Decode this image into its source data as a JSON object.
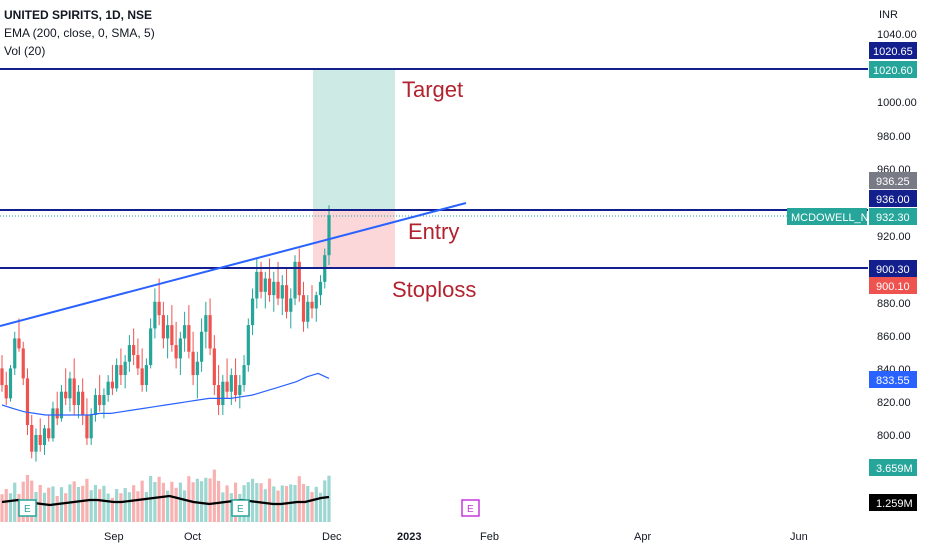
{
  "header": {
    "symbol": "UNITED SPIRITS, 1D, NSE",
    "ema": "EMA (200, close, 0, SMA, 5)",
    "vol": "Vol (20)"
  },
  "currency": "INR",
  "annotations": {
    "target": "Target",
    "entry": "Entry",
    "stoploss": "Stoploss"
  },
  "ticker_tag": "MCDOWELL_N",
  "colors": {
    "up": "#26a69a",
    "down": "#ef5350",
    "hline": "#131f8c",
    "trendline": "#2962ff",
    "ema": "#2962ff",
    "target_zone": "#cdeae4",
    "stop_zone": "#fbd7d9",
    "annotation": "#b2222f"
  },
  "chart_data": {
    "type": "candlestick",
    "price_axis": {
      "ticks": [
        "1040.00",
        "1000.00",
        "980.00",
        "960.00",
        "920.00",
        "880.00",
        "860.00",
        "840.00",
        "820.00",
        "800.00"
      ],
      "range": [
        775,
        1050
      ]
    },
    "time_axis": [
      "Sep",
      "Oct",
      "Dec",
      "2023",
      "Feb",
      "Apr",
      "Jun"
    ],
    "price_labels": [
      {
        "text": "1020.65",
        "value": 1020.65,
        "color": "#131f8c"
      },
      {
        "text": "1020.60",
        "value": 1020.6,
        "color": "#26a69a"
      },
      {
        "text": "936.25",
        "value": 936.25,
        "color": "#787b86"
      },
      {
        "text": "936.00",
        "value": 936.0,
        "color": "#131f8c"
      },
      {
        "text": "932.30",
        "value": 932.3,
        "color": "#26a69a"
      },
      {
        "text": "900.30",
        "value": 900.3,
        "color": "#131f8c"
      },
      {
        "text": "900.10",
        "value": 900.1,
        "color": "#ef5350"
      },
      {
        "text": "833.55",
        "value": 833.55,
        "color": "#2962ff"
      }
    ],
    "volume_labels": [
      {
        "text": "3.659M",
        "color": "#26a69a"
      },
      {
        "text": "1.259M",
        "color": "#000000"
      }
    ],
    "horizontal_levels": [
      1020.6,
      936.0,
      900.3
    ],
    "trendline": [
      {
        "date_index": 0,
        "price": 870
      },
      {
        "date_index": 120,
        "price": 936
      }
    ],
    "position": {
      "entry": 932.3,
      "target": 1020.6,
      "stop": 900.3
    },
    "candles": [
      [
        840,
        848,
        826,
        830
      ],
      [
        830,
        838,
        818,
        822
      ],
      [
        822,
        842,
        820,
        840
      ],
      [
        840,
        862,
        836,
        858
      ],
      [
        858,
        870,
        850,
        852
      ],
      [
        852,
        856,
        830,
        834
      ],
      [
        834,
        840,
        800,
        806
      ],
      [
        806,
        812,
        786,
        790
      ],
      [
        790,
        804,
        784,
        800
      ],
      [
        800,
        810,
        790,
        794
      ],
      [
        794,
        806,
        788,
        804
      ],
      [
        804,
        812,
        796,
        798
      ],
      [
        798,
        820,
        796,
        816
      ],
      [
        816,
        826,
        806,
        810
      ],
      [
        810,
        830,
        808,
        826
      ],
      [
        826,
        840,
        818,
        822
      ],
      [
        822,
        838,
        814,
        834
      ],
      [
        834,
        846,
        812,
        818
      ],
      [
        818,
        830,
        810,
        826
      ],
      [
        826,
        834,
        806,
        812
      ],
      [
        812,
        822,
        794,
        798
      ],
      [
        798,
        816,
        794,
        812
      ],
      [
        812,
        828,
        808,
        824
      ],
      [
        824,
        836,
        814,
        818
      ],
      [
        818,
        828,
        810,
        824
      ],
      [
        824,
        836,
        820,
        832
      ],
      [
        832,
        842,
        824,
        828
      ],
      [
        828,
        846,
        826,
        842
      ],
      [
        842,
        852,
        830,
        836
      ],
      [
        836,
        848,
        828,
        844
      ],
      [
        844,
        860,
        838,
        854
      ],
      [
        854,
        864,
        842,
        848
      ],
      [
        848,
        858,
        836,
        840
      ],
      [
        840,
        852,
        826,
        830
      ],
      [
        830,
        846,
        826,
        842
      ],
      [
        842,
        870,
        840,
        864
      ],
      [
        864,
        888,
        858,
        880
      ],
      [
        880,
        894,
        866,
        872
      ],
      [
        872,
        880,
        852,
        858
      ],
      [
        858,
        872,
        846,
        866
      ],
      [
        866,
        878,
        850,
        854
      ],
      [
        854,
        868,
        840,
        846
      ],
      [
        846,
        862,
        836,
        858
      ],
      [
        858,
        874,
        850,
        866
      ],
      [
        866,
        878,
        846,
        850
      ],
      [
        850,
        862,
        830,
        836
      ],
      [
        836,
        850,
        822,
        844
      ],
      [
        844,
        870,
        838,
        862
      ],
      [
        862,
        880,
        852,
        872
      ],
      [
        872,
        882,
        848,
        852
      ],
      [
        852,
        860,
        824,
        830
      ],
      [
        830,
        842,
        812,
        818
      ],
      [
        818,
        836,
        812,
        832
      ],
      [
        832,
        846,
        822,
        826
      ],
      [
        826,
        840,
        818,
        836
      ],
      [
        836,
        846,
        820,
        824
      ],
      [
        824,
        836,
        816,
        830
      ],
      [
        830,
        848,
        826,
        842
      ],
      [
        842,
        870,
        838,
        866
      ],
      [
        866,
        888,
        860,
        882
      ],
      [
        882,
        906,
        876,
        898
      ],
      [
        898,
        904,
        882,
        886
      ],
      [
        886,
        898,
        876,
        894
      ],
      [
        894,
        906,
        880,
        884
      ],
      [
        884,
        898,
        874,
        892
      ],
      [
        892,
        904,
        878,
        882
      ],
      [
        882,
        896,
        872,
        890
      ],
      [
        890,
        900,
        870,
        874
      ],
      [
        874,
        888,
        864,
        882
      ],
      [
        882,
        908,
        878,
        904
      ],
      [
        904,
        912,
        880,
        884
      ],
      [
        884,
        892,
        862,
        868
      ],
      [
        868,
        884,
        864,
        880
      ],
      [
        880,
        890,
        870,
        876
      ],
      [
        876,
        886,
        868,
        884
      ],
      [
        884,
        896,
        878,
        892
      ],
      [
        892,
        912,
        888,
        908
      ],
      [
        908,
        938,
        902,
        932
      ]
    ],
    "ema_line": [
      818,
      816,
      814,
      813,
      812,
      812,
      812,
      812,
      812,
      813,
      813,
      814,
      815,
      816,
      817,
      818,
      819,
      820,
      821,
      822,
      822,
      822,
      823,
      824,
      826,
      828,
      830,
      832,
      835,
      837,
      834
    ],
    "volume_ma": [
      1.0,
      1.05,
      1.1,
      1.0,
      0.95,
      0.9,
      0.85,
      0.9,
      0.95,
      1.0,
      1.05,
      1.1,
      1.1,
      1.05,
      1.0,
      1.0,
      1.05,
      1.1,
      1.15,
      1.2,
      1.25,
      1.3,
      1.2,
      1.1,
      1.0,
      0.95,
      0.9,
      0.95,
      1.0,
      1.05,
      1.1,
      1.05,
      1.0,
      0.95,
      0.9,
      0.9,
      0.95,
      1.0,
      1.0,
      1.1,
      1.2,
      1.25
    ]
  }
}
